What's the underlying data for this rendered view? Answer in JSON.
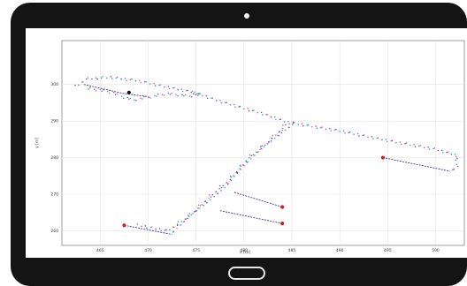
{
  "chart_data": {
    "type": "scatter",
    "xlabel": "x [m]",
    "ylabel": "y [m]",
    "xlim": [
      461,
      503
    ],
    "ylim": [
      256,
      312
    ],
    "xticks": [
      "465",
      "470",
      "475",
      "480",
      "485",
      "490",
      "495",
      "500"
    ],
    "yticks": [
      "260",
      "270",
      "280",
      "290",
      "300"
    ],
    "xtick_values": [
      465,
      470,
      475,
      480,
      485,
      490,
      495,
      500
    ],
    "ytick_values": [
      260,
      270,
      280,
      290,
      300
    ],
    "grid": true,
    "series": [
      {
        "marker": "dots",
        "colors": [
          "#6a3fd4",
          "#2f7be0",
          "#2bb36a",
          "#e0459c"
        ],
        "paths": [
          [
            [
              462.5,
              299.5
            ],
            [
              463.5,
              301.5
            ],
            [
              466,
              302
            ],
            [
              469,
              301
            ],
            [
              472,
              299.3
            ],
            [
              474.5,
              298.0
            ],
            [
              475.5,
              297.2
            ],
            [
              474.3,
              296.8
            ],
            [
              472,
              297.5
            ],
            [
              470,
              296.5
            ],
            [
              468.5,
              295.8
            ],
            [
              467.5,
              296.5
            ],
            [
              466,
              298
            ],
            [
              463.5,
              299
            ]
          ],
          [
            [
              474.5,
              298.0
            ],
            [
              478,
              295
            ],
            [
              482,
              292
            ],
            [
              484.5,
              289.7
            ]
          ],
          [
            [
              484.5,
              289.7
            ],
            [
              490,
              287.3
            ],
            [
              495,
              284.7
            ],
            [
              500,
              282.3
            ],
            [
              502.2,
              280.6
            ],
            [
              502.2,
              277.5
            ],
            [
              501.5,
              276.3
            ]
          ],
          [
            [
              469,
              261.5
            ],
            [
              472,
              260
            ],
            [
              474,
              263.5
            ],
            [
              476,
              267.5
            ],
            [
              478,
              272
            ],
            [
              480,
              278
            ],
            [
              482,
              283
            ],
            [
              484,
              288
            ],
            [
              484.5,
              289.7
            ]
          ],
          [
            [
              472.5,
              259.5
            ],
            [
              474.5,
              264.5
            ],
            [
              476.5,
              269.5
            ],
            [
              478.5,
              274
            ],
            [
              480.5,
              280
            ],
            [
              483,
              285
            ],
            [
              485,
              289
            ],
            [
              485.5,
              290
            ]
          ]
        ]
      },
      {
        "marker": "dashes",
        "color": "#4b2fa8",
        "paths": [
          [
            [
              467.5,
              261.5
            ],
            [
              472.5,
              259.0
            ]
          ],
          [
            [
              479,
              270.5
            ],
            [
              484,
              266.5
            ]
          ],
          [
            [
              477.5,
              265.5
            ],
            [
              484,
              262.0
            ]
          ],
          [
            [
              494.5,
              280.0
            ],
            [
              501.5,
              276.3
            ]
          ],
          [
            [
              463.3,
              300.0
            ],
            [
              467.5,
              297.5
            ],
            [
              470,
              296.7
            ]
          ]
        ]
      }
    ],
    "endpoints": [
      {
        "x": 467.5,
        "y": 261.5,
        "color": "#d11f1f"
      },
      {
        "x": 484,
        "y": 266.5,
        "color": "#d11f1f"
      },
      {
        "x": 484,
        "y": 262.0,
        "color": "#d11f1f"
      },
      {
        "x": 494.5,
        "y": 280.0,
        "color": "#d11f1f"
      },
      {
        "x": 468,
        "y": 297.8,
        "color": "#111111"
      }
    ]
  }
}
